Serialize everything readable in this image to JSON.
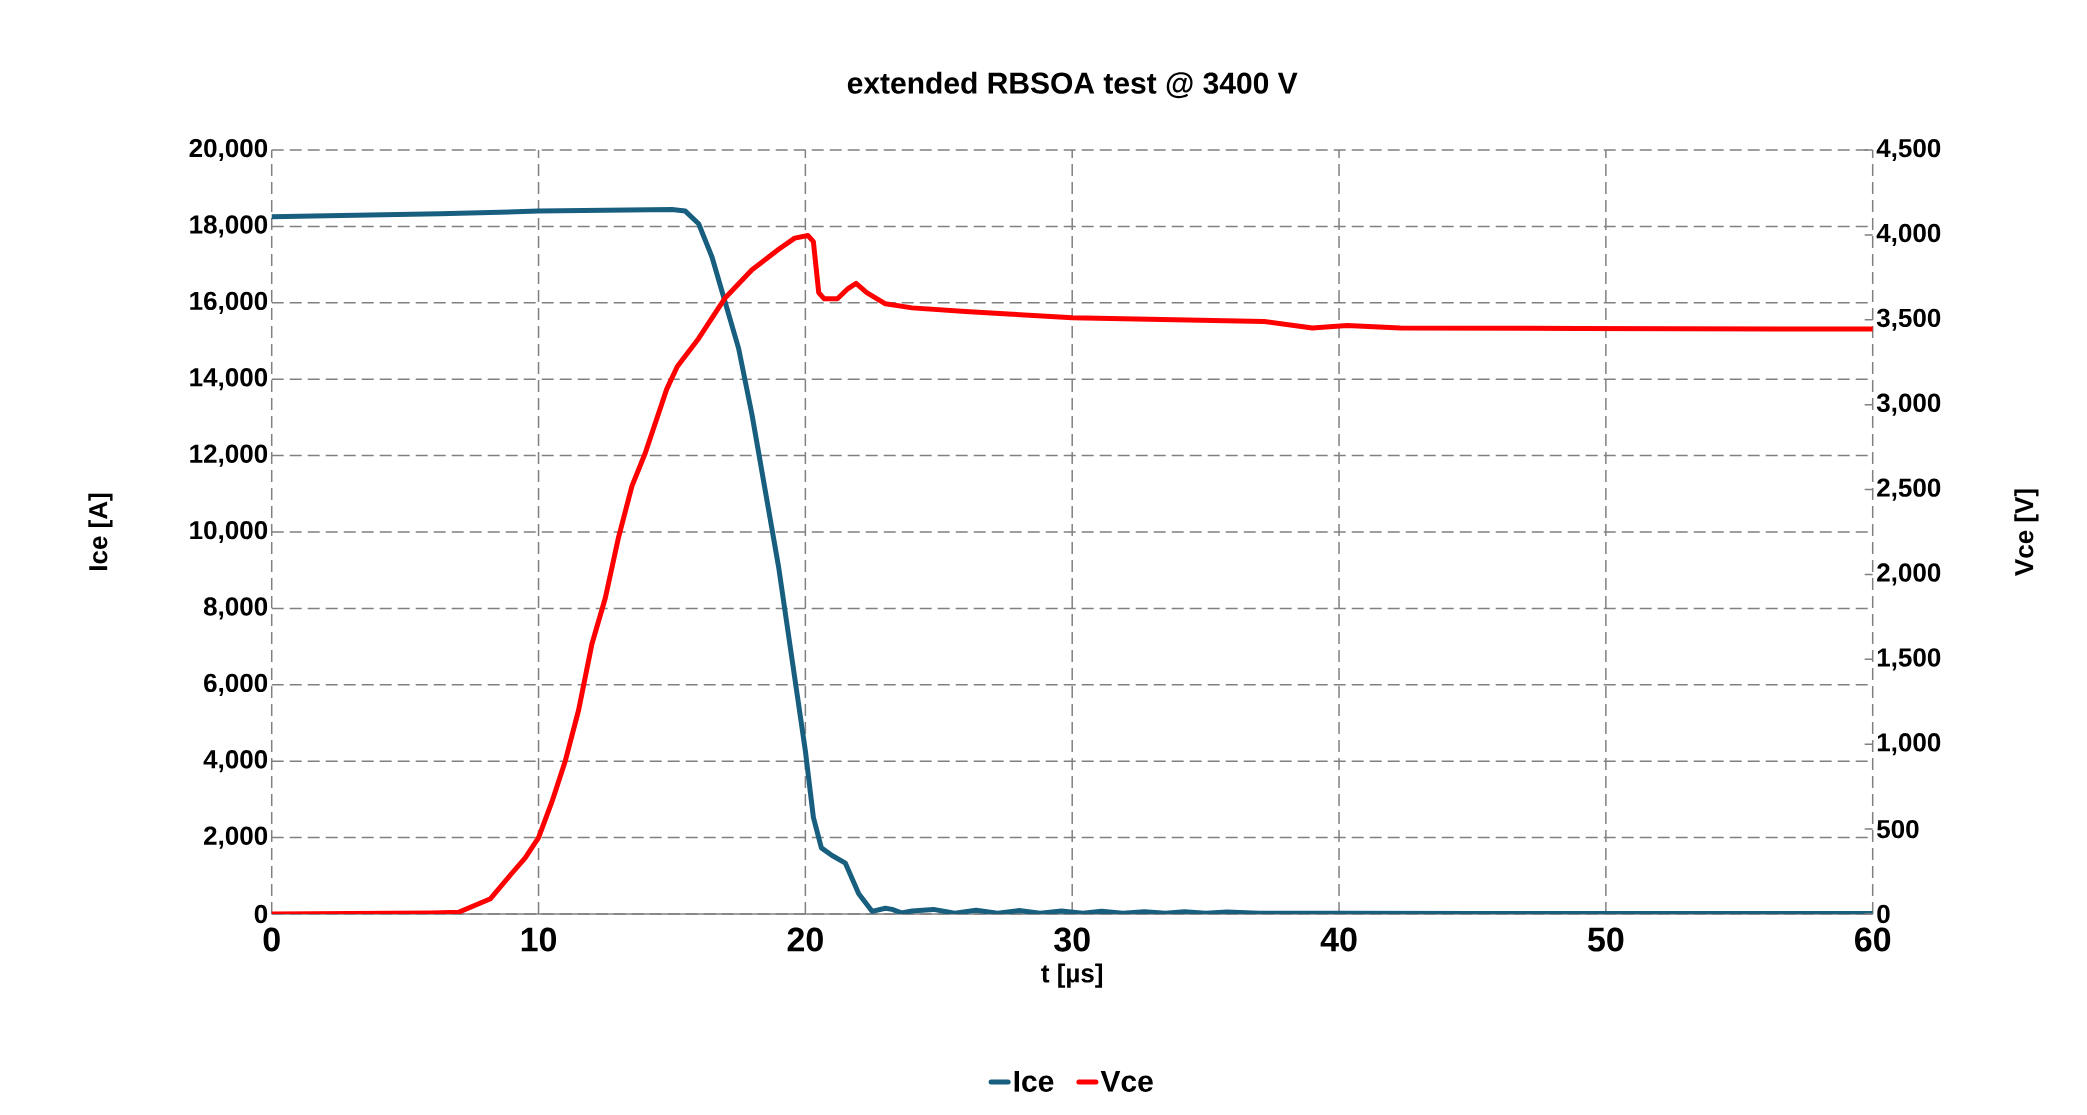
{
  "chart_data": {
    "type": "line",
    "title": "extended RBSOA test @ 3400 V",
    "xlabel": "t [µs]",
    "ylabel": "Ice [A]",
    "y2label": "Vce [V]",
    "xlim": [
      0,
      60
    ],
    "xticks": [
      0,
      10,
      20,
      30,
      40,
      50,
      60
    ],
    "ylim": [
      0,
      20000
    ],
    "yticks": [
      {
        "value": 0,
        "label": "0"
      },
      {
        "value": 2000,
        "label": "2,000"
      },
      {
        "value": 4000,
        "label": "4,000"
      },
      {
        "value": 6000,
        "label": "6,000"
      },
      {
        "value": 8000,
        "label": "8,000"
      },
      {
        "value": 10000,
        "label": "10,000"
      },
      {
        "value": 12000,
        "label": "12,000"
      },
      {
        "value": 14000,
        "label": "14,000"
      },
      {
        "value": 16000,
        "label": "16,000"
      },
      {
        "value": 18000,
        "label": "18,000"
      },
      {
        "value": 20000,
        "label": "20,000"
      }
    ],
    "y2lim": [
      0,
      4500
    ],
    "y2ticks": [
      {
        "value": 0,
        "label": "0"
      },
      {
        "value": 500,
        "label": "500"
      },
      {
        "value": 1000,
        "label": "1,000"
      },
      {
        "value": 1500,
        "label": "1,500"
      },
      {
        "value": 2000,
        "label": "2,000"
      },
      {
        "value": 2500,
        "label": "2,500"
      },
      {
        "value": 3000,
        "label": "3,000"
      },
      {
        "value": 3500,
        "label": "3,500"
      },
      {
        "value": 4000,
        "label": "4,000"
      },
      {
        "value": 4500,
        "label": "4,500"
      }
    ],
    "grid": true,
    "legend": "bottom",
    "series": [
      {
        "name": "Ice",
        "color": "#185f7f",
        "x": [
          0,
          6.3,
          10,
          15,
          15.5,
          16,
          16.5,
          17,
          17.5,
          18,
          19,
          20,
          20.3,
          20.6,
          21,
          21.5,
          22,
          22.5,
          23,
          23.25,
          23.6,
          24,
          24.8,
          25.6,
          26.4,
          27.2,
          28,
          28.8,
          29.6,
          30.4,
          31.1,
          31.9,
          32.7,
          33.5,
          34.2,
          35,
          35.8,
          37,
          40,
          45,
          50,
          60
        ],
        "values": [
          18250,
          18330,
          18400,
          18440,
          18400,
          18070,
          17200,
          16000,
          14800,
          13070,
          9070,
          4270,
          2530,
          1730,
          1530,
          1330,
          530,
          70,
          150,
          120,
          30,
          80,
          120,
          20,
          100,
          20,
          90,
          20,
          80,
          20,
          70,
          20,
          60,
          20,
          60,
          20,
          50,
          20,
          20,
          10,
          10,
          10
        ]
      },
      {
        "name": "Vce",
        "color": "#ff0000",
        "axis": "y2",
        "x": [
          0,
          6,
          7,
          8.2,
          9,
          9.5,
          10,
          10.5,
          11,
          11.5,
          12,
          12.5,
          13,
          13.5,
          14,
          14.8,
          15.2,
          16,
          17,
          18,
          19,
          19.6,
          20.1,
          20.3,
          20.5,
          20.7,
          21.2,
          21.6,
          21.9,
          22.3,
          23,
          24,
          26,
          27.6,
          30,
          37.2,
          39,
          40.3,
          42.3,
          49,
          60
        ],
        "values": [
          0,
          6,
          10,
          90,
          240,
          330,
          450,
          660,
          900,
          1200,
          1590,
          1860,
          2220,
          2520,
          2715,
          3090,
          3225,
          3390,
          3630,
          3795,
          3915,
          3981,
          3996,
          3960,
          3660,
          3624,
          3624,
          3684,
          3714,
          3660,
          3594,
          3570,
          3549,
          3534,
          3512,
          3490,
          3451,
          3466,
          3452,
          3449,
          3445
        ]
      }
    ]
  }
}
